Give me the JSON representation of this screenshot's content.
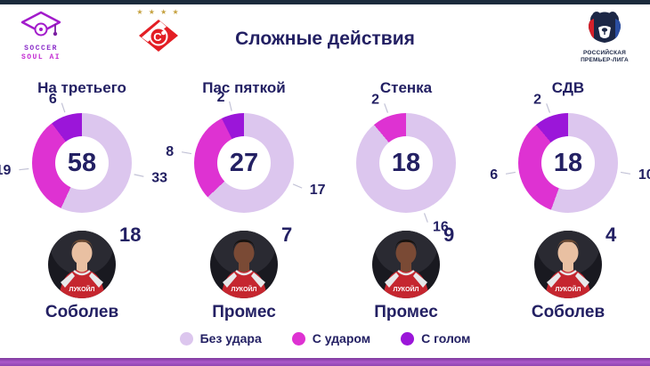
{
  "header": {
    "brand": {
      "line1": "SOCCER",
      "line2": "SOUL AI"
    },
    "spartak_stars": "★ ★ ★ ★",
    "title": "Сложные действия",
    "rpl": {
      "line1": "РОССИЙСКАЯ",
      "line2": "ПРЕМЬЕР-ЛИГА"
    }
  },
  "colors": {
    "no_shot": "#dcc6ee",
    "with_shot": "#de32d2",
    "with_goal": "#9b16d9",
    "navy": "#232063",
    "top_bar": "#1b2b3c"
  },
  "legend": [
    {
      "key": "no_shot",
      "label": "Без удара"
    },
    {
      "key": "with_shot",
      "label": "С ударом"
    },
    {
      "key": "with_goal",
      "label": "С голом"
    }
  ],
  "chart_data": {
    "type": "donut",
    "title": "Сложные действия",
    "series_labels": {
      "no_shot": "Без удара",
      "with_shot": "С ударом",
      "with_goal": "С голом"
    },
    "charts": [
      {
        "title": "На третьего",
        "total": 58,
        "no_shot": 33,
        "with_shot": 19,
        "with_goal": 6,
        "top_player": {
          "name": "Соболев",
          "value": 18,
          "skin": "#e9c0a2",
          "hair": "#6b4a33"
        }
      },
      {
        "title": "Пас пяткой",
        "total": 27,
        "no_shot": 17,
        "with_shot": 8,
        "with_goal": 2,
        "top_player": {
          "name": "Промес",
          "value": 7,
          "skin": "#7a4a35",
          "hair": "#17120f"
        }
      },
      {
        "title": "Стенка",
        "total": 18,
        "no_shot": 16,
        "with_shot": 2,
        "with_goal": 0,
        "top_player": {
          "name": "Промес",
          "value": 9,
          "skin": "#7a4a35",
          "hair": "#17120f"
        }
      },
      {
        "title": "СДВ",
        "total": 18,
        "no_shot": 10,
        "with_shot": 6,
        "with_goal": 2,
        "top_player": {
          "name": "Соболев",
          "value": 4,
          "skin": "#e9c0a2",
          "hair": "#6b4a33"
        }
      }
    ]
  }
}
